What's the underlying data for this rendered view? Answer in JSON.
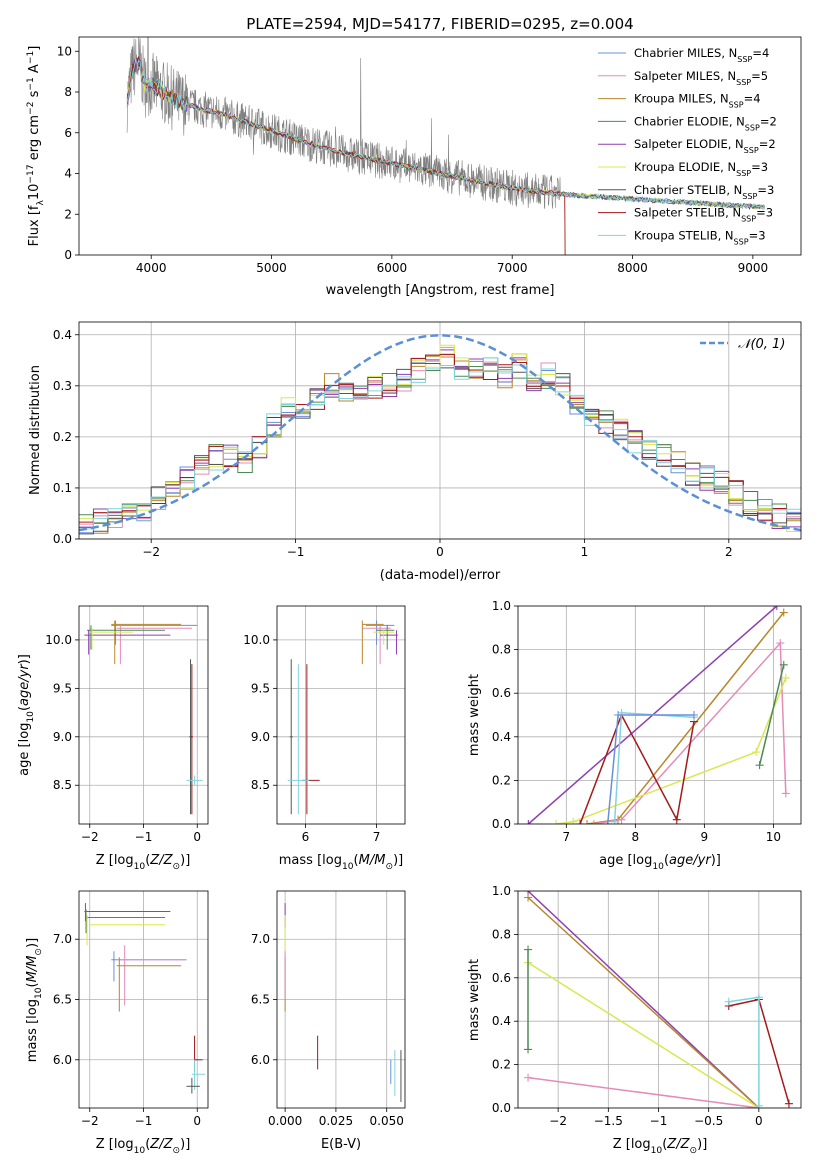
{
  "figure": {
    "title": "PLATE=2594, MJD=54177, FIBERID=0295, z=0.004"
  },
  "colors": {
    "Chabrier MILES": "#6a8fd8",
    "Salpeter MILES": "#e58bb8",
    "Kroupa MILES": "#b8862b",
    "Chabrier ELODIE": "#4e8a55",
    "Salpeter ELODIE": "#8e3fb0",
    "Kroupa ELODIE": "#d8e84e",
    "Chabrier STELIB": "#555555",
    "Salpeter STELIB": "#a31a1a",
    "Kroupa STELIB": "#7fd4df"
  },
  "chart_data": [
    {
      "id": "spectrum",
      "type": "line",
      "title": "PLATE=2594, MJD=54177, FIBERID=0295, z=0.004",
      "xlabel": "wavelength [Angstrom, rest frame]",
      "ylabel_parts": [
        "Flux [f",
        "λ",
        "10",
        "−17",
        " erg cm",
        "−2",
        " s",
        "−1",
        " A",
        "−1",
        "]"
      ],
      "xlim": [
        3400,
        9400
      ],
      "ylim": [
        0,
        10.7
      ],
      "xticks": [
        4000,
        5000,
        6000,
        7000,
        8000,
        9000
      ],
      "yticks": [
        0,
        2,
        4,
        6,
        8,
        10
      ],
      "data_series": {
        "name": "data",
        "color": "#808080"
      },
      "continuum": {
        "x": [
          3800,
          3850,
          3900,
          3950,
          4000,
          4100,
          4200,
          4400,
          4600,
          4800,
          5000,
          5300,
          5600,
          6000,
          6400,
          6800,
          7200,
          7600,
          8000,
          8400,
          8800,
          9100
        ],
        "y": [
          7.6,
          9.2,
          9.4,
          8.3,
          8.4,
          8.0,
          7.6,
          7.2,
          6.9,
          6.5,
          6.1,
          5.5,
          5.0,
          4.5,
          4.0,
          3.5,
          3.1,
          2.9,
          2.75,
          2.6,
          2.45,
          2.35
        ]
      },
      "legend_location": "upper right",
      "legend": [
        {
          "label": "Chabrier MILES",
          "n": "4"
        },
        {
          "label": "Salpeter MILES",
          "n": "5"
        },
        {
          "label": "Kroupa MILES",
          "n": "4"
        },
        {
          "label": "Chabrier ELODIE",
          "n": "2"
        },
        {
          "label": "Salpeter ELODIE",
          "n": "2"
        },
        {
          "label": "Kroupa ELODIE",
          "n": "3"
        },
        {
          "label": "Chabrier STELIB",
          "n": "3"
        },
        {
          "label": "Salpeter STELIB",
          "n": "3"
        },
        {
          "label": "Kroupa STELIB",
          "n": "3"
        }
      ]
    },
    {
      "id": "residuals",
      "type": "line",
      "xlabel": "(data-model)/error",
      "ylabel": "Normed distribution",
      "xlim": [
        -2.5,
        2.5
      ],
      "ylim": [
        0,
        0.425
      ],
      "xticks": [
        -2,
        -1,
        0,
        1,
        2
      ],
      "yticks": [
        0.0,
        0.1,
        0.2,
        0.3,
        0.4
      ],
      "grid": true,
      "legend_location": "upper right",
      "gaussian": {
        "label": "𝒩(0, 1)",
        "color": "#5b8fd6"
      },
      "histogram_bins": 50,
      "histogram_values": [
        0.03,
        0.035,
        0.04,
        0.045,
        0.06,
        0.08,
        0.1,
        0.12,
        0.14,
        0.16,
        0.16,
        0.15,
        0.18,
        0.22,
        0.26,
        0.24,
        0.27,
        0.3,
        0.29,
        0.28,
        0.3,
        0.3,
        0.31,
        0.33,
        0.35,
        0.36,
        0.33,
        0.34,
        0.33,
        0.32,
        0.34,
        0.3,
        0.32,
        0.3,
        0.26,
        0.24,
        0.23,
        0.21,
        0.19,
        0.17,
        0.16,
        0.15,
        0.13,
        0.12,
        0.11,
        0.09,
        0.07,
        0.055,
        0.045,
        0.035
      ]
    },
    {
      "id": "age_vs_Z",
      "type": "scatter",
      "xlabel": "Z [log10(Z/Z⊙)]",
      "ylabel": "age  [log10(age/yr)]",
      "xlim": [
        -2.2,
        0.2
      ],
      "ylim": [
        8.1,
        10.35
      ],
      "xticks": [
        -2,
        -1,
        0
      ],
      "yticks": [
        8.5,
        9.0,
        9.5,
        10.0
      ],
      "grid": true,
      "error_bars": [
        {
          "model": "Chabrier MILES",
          "x": [
            -1.6,
            0.0
          ],
          "y": 10.15,
          "yerr": [
            9.95,
            10.2
          ]
        },
        {
          "model": "Salpeter MILES",
          "x": [
            -1.5,
            -0.1
          ],
          "y": 10.12,
          "yerr": [
            9.75,
            10.15
          ]
        },
        {
          "model": "Kroupa MILES",
          "x": [
            -1.6,
            -0.3
          ],
          "y": 10.16,
          "yerr": [
            9.75,
            10.2
          ]
        },
        {
          "model": "Chabrier ELODIE",
          "x": [
            -2.05,
            -0.6
          ],
          "y": 10.1,
          "yerr": [
            9.9,
            10.15
          ]
        },
        {
          "model": "Salpeter ELODIE",
          "x": [
            -2.1,
            -0.5
          ],
          "y": 10.05,
          "yerr": [
            9.85,
            10.1
          ]
        },
        {
          "model": "Kroupa ELODIE",
          "x": [
            -2.0,
            -1.2
          ],
          "y": 10.08,
          "yerr": [
            9.9,
            10.12
          ]
        },
        {
          "model": "Chabrier STELIB",
          "x": [
            -0.15,
            -0.1
          ],
          "y": 9.0,
          "yerr": [
            8.2,
            9.8
          ]
        },
        {
          "model": "Salpeter STELIB",
          "x": [
            -0.12,
            -0.08
          ],
          "y": 9.0,
          "yerr": [
            8.2,
            9.75
          ]
        },
        {
          "model": "Kroupa STELIB",
          "x": [
            -0.2,
            0.1
          ],
          "y": 8.55,
          "yerr": [
            8.5,
            8.6
          ]
        }
      ]
    },
    {
      "id": "age_vs_mass",
      "type": "scatter",
      "xlabel": "mass [log10(M/M⊙)]",
      "xlim": [
        5.6,
        7.4
      ],
      "ylim": [
        8.1,
        10.35
      ],
      "xticks": [
        6,
        7
      ],
      "yticks": [
        8.5,
        9.0,
        9.5,
        10.0
      ],
      "grid": true
    },
    {
      "id": "weight_vs_age",
      "type": "line",
      "xlabel": "age  [log10(age/yr)]",
      "ylabel": "mass weight",
      "xlim": [
        6.3,
        10.4
      ],
      "ylim": [
        0,
        1.0
      ],
      "xticks": [
        7,
        8,
        9,
        10
      ],
      "yticks": [
        0.0,
        0.2,
        0.4,
        0.6,
        0.8,
        1.0
      ],
      "grid": true,
      "series": [
        {
          "name": "Salpeter ELODIE",
          "x": [
            6.45,
            10.05
          ],
          "y": [
            0.0,
            1.0
          ]
        },
        {
          "name": "Kroupa MILES",
          "x": [
            7.3,
            7.75,
            10.15
          ],
          "y": [
            0.0,
            0.02,
            0.97
          ]
        },
        {
          "name": "Salpeter MILES",
          "x": [
            7.4,
            7.8,
            10.1,
            10.18
          ],
          "y": [
            0.0,
            0.02,
            0.83,
            0.14
          ]
        },
        {
          "name": "Kroupa ELODIE",
          "x": [
            6.85,
            7.1,
            9.75,
            10.18
          ],
          "y": [
            0.0,
            0.01,
            0.33,
            0.67
          ]
        },
        {
          "name": "Chabrier ELODIE",
          "x": [
            9.8,
            10.15
          ],
          "y": [
            0.27,
            0.73
          ]
        },
        {
          "name": "Salpeter STELIB",
          "x": [
            7.2,
            7.8,
            8.6,
            8.85
          ],
          "y": [
            0.0,
            0.5,
            0.02,
            0.47
          ]
        },
        {
          "name": "Kroupa STELIB",
          "x": [
            7.7,
            7.8,
            8.85
          ],
          "y": [
            0.01,
            0.51,
            0.49
          ]
        },
        {
          "name": "Chabrier MILES",
          "x": [
            7.6,
            7.75,
            8.85
          ],
          "y": [
            0.0,
            0.5,
            0.5
          ]
        }
      ]
    },
    {
      "id": "mass_vs_Z",
      "type": "scatter",
      "xlabel": "Z [log10(Z/Z⊙)]",
      "ylabel": "mass [log10(M/M⊙)]",
      "xlim": [
        -2.2,
        0.2
      ],
      "ylim": [
        5.6,
        7.4
      ],
      "xticks": [
        -2,
        -1,
        0
      ],
      "yticks": [
        6.0,
        6.5,
        7.0
      ],
      "grid": true
    },
    {
      "id": "mass_vs_ebv",
      "type": "scatter",
      "xlabel": "E(B-V)",
      "xlim": [
        -0.004,
        0.059
      ],
      "ylim": [
        5.6,
        7.4
      ],
      "xticks": [
        0.0,
        0.025,
        0.05
      ],
      "xtick_labels": [
        "0.000",
        "0.025",
        "0.050"
      ],
      "yticks": [
        6.0,
        6.5,
        7.0
      ],
      "grid": true
    },
    {
      "id": "weight_vs_Z",
      "type": "line",
      "xlabel": "Z [log10(Z/Z⊙)]",
      "ylabel": "mass weight",
      "xlim": [
        -2.4,
        0.42
      ],
      "ylim": [
        0,
        1.0
      ],
      "xticks": [
        -2.0,
        -1.5,
        -1.0,
        -0.5,
        0.0
      ],
      "yticks": [
        0.0,
        0.2,
        0.4,
        0.6,
        0.8,
        1.0
      ],
      "grid": true,
      "series": [
        {
          "name": "Salpeter ELODIE",
          "x": [
            -2.3,
            0.0
          ],
          "y": [
            1.0,
            0.0
          ]
        },
        {
          "name": "Kroupa MILES",
          "x": [
            -2.3,
            0.0
          ],
          "y": [
            0.97,
            0.0
          ]
        },
        {
          "name": "Kroupa ELODIE",
          "x": [
            -2.3,
            0.0
          ],
          "y": [
            0.67,
            0.0
          ]
        },
        {
          "name": "Salpeter MILES",
          "x": [
            -2.3,
            0.0
          ],
          "y": [
            0.14,
            0.0
          ]
        },
        {
          "name": "Salpeter STELIB",
          "x": [
            -0.3,
            0.0,
            0.3
          ],
          "y": [
            0.47,
            0.5,
            0.02
          ]
        },
        {
          "name": "Kroupa STELIB",
          "x": [
            -0.3,
            0.0,
            0.0
          ],
          "y": [
            0.49,
            0.51,
            0.01
          ]
        },
        {
          "name": "Chabrier ELODIE",
          "x": [
            -2.3,
            -2.3
          ],
          "y": [
            0.27,
            0.73
          ]
        }
      ]
    }
  ]
}
